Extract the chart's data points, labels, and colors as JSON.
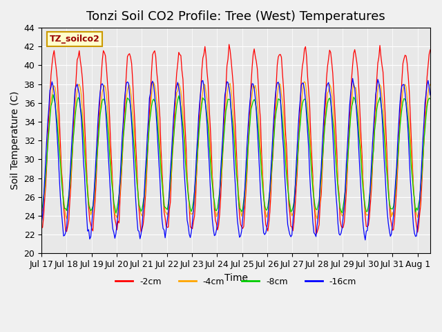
{
  "title": "Tonzi Soil CO2 Profile: Tree (West) Temperatures",
  "xlabel": "Time",
  "ylabel": "Soil Temperature (C)",
  "ylim": [
    20,
    44
  ],
  "xlim": [
    0,
    15.5
  ],
  "series_labels": [
    "-2cm",
    "-4cm",
    "-8cm",
    "-16cm"
  ],
  "series_colors": [
    "#ff0000",
    "#ffa500",
    "#00cc00",
    "#0000ff"
  ],
  "legend_label": "TZ_soilco2",
  "legend_facecolor": "#ffffcc",
  "legend_edgecolor": "#cc9900",
  "legend_textcolor": "#990000",
  "fig_bg_color": "#f0f0f0",
  "plot_bg_color": "#e8e8e8",
  "title_fontsize": 13,
  "axis_fontsize": 10,
  "tick_fontsize": 9,
  "n_days": 15.5,
  "xtick_labels": [
    "Jul 17",
    "Jul 18",
    "Jul 19",
    "Jul 20",
    "Jul 21",
    "Jul 22",
    "Jul 23",
    "Jul 24",
    "Jul 25",
    "Jul 26",
    "Jul 27",
    "Jul 28",
    "Jul 29",
    "Jul 30",
    "Jul 31",
    "Aug 1"
  ],
  "xtick_positions": [
    0,
    1,
    2,
    3,
    4,
    5,
    6,
    7,
    8,
    9,
    10,
    11,
    12,
    13,
    14,
    15
  ],
  "ytick_positions": [
    20,
    22,
    24,
    26,
    28,
    30,
    32,
    34,
    36,
    38,
    40,
    42,
    44
  ],
  "series_params": [
    {
      "amplitude": 9.5,
      "phase_lag": 0.0,
      "mean_temp": 32.0,
      "noise_std": 0.3
    },
    {
      "amplitude": 7.0,
      "phase_lag": 0.08,
      "mean_temp": 31.0,
      "noise_std": 0.2
    },
    {
      "amplitude": 6.0,
      "phase_lag": 0.2,
      "mean_temp": 30.5,
      "noise_std": 0.15
    },
    {
      "amplitude": 8.2,
      "phase_lag": 0.5,
      "mean_temp": 30.0,
      "noise_std": 0.2
    }
  ]
}
